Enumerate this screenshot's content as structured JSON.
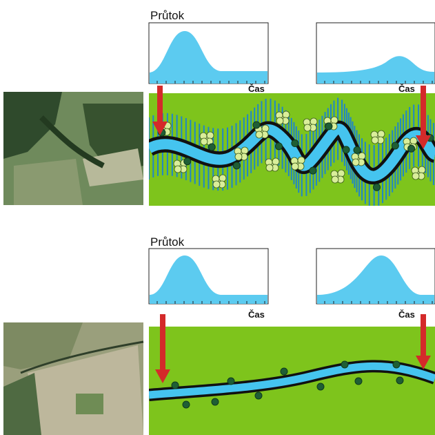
{
  "panels": [
    {
      "title": "Průtok",
      "graphs": [
        {
          "x_label": "Čas"
        },
        {
          "x_label": "Čas"
        }
      ]
    },
    {
      "title": "Průtok",
      "graphs": [
        {
          "x_label": "Čas"
        },
        {
          "x_label": "Čas"
        }
      ]
    }
  ]
}
